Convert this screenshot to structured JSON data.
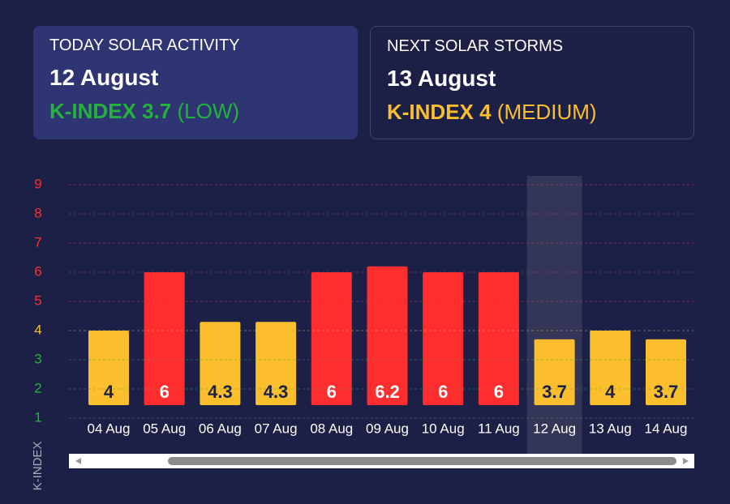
{
  "cards": [
    {
      "label": "TODAY SOLAR ACTIVITY",
      "date": "12 August",
      "index": "K-INDEX 3.7",
      "level": "(LOW)",
      "color": "#22b33a",
      "style": "filled"
    },
    {
      "label": "NEXT SOLAR STORMS",
      "date": "13 August",
      "index": "K-INDEX 4",
      "level": "(MEDIUM)",
      "color": "#fbbf2d",
      "style": "outlined"
    }
  ],
  "chart_data": {
    "type": "bar",
    "y_label": "K-INDEX",
    "categories": [
      "04 Aug",
      "05 Aug",
      "06 Aug",
      "07 Aug",
      "08 Aug",
      "09 Aug",
      "10 Aug",
      "11 Aug",
      "12 Aug",
      "13 Aug",
      "14 Aug"
    ],
    "values": [
      4,
      6,
      4.3,
      4.3,
      6,
      6.2,
      6,
      6,
      3.7,
      4,
      3.7
    ],
    "colors": [
      "#fbbf2d",
      "#ff2d2d",
      "#fbbf2d",
      "#fbbf2d",
      "#ff2d2d",
      "#ff2d2d",
      "#ff2d2d",
      "#ff2d2d",
      "#fbbf2d",
      "#fbbf2d",
      "#fbbf2d"
    ],
    "highlight": "12 Aug",
    "ylim": [
      1,
      9
    ],
    "yticks": [
      1,
      2,
      3,
      4,
      5,
      6,
      7,
      8,
      9
    ],
    "ytick_colors": [
      "#22b33a",
      "#22b33a",
      "#22b33a",
      "#fbbf2d",
      "#ff2d2d",
      "#ff2d2d",
      "#ff2d2d",
      "#ff2d2d",
      "#ff2d2d"
    ],
    "grid": true
  }
}
